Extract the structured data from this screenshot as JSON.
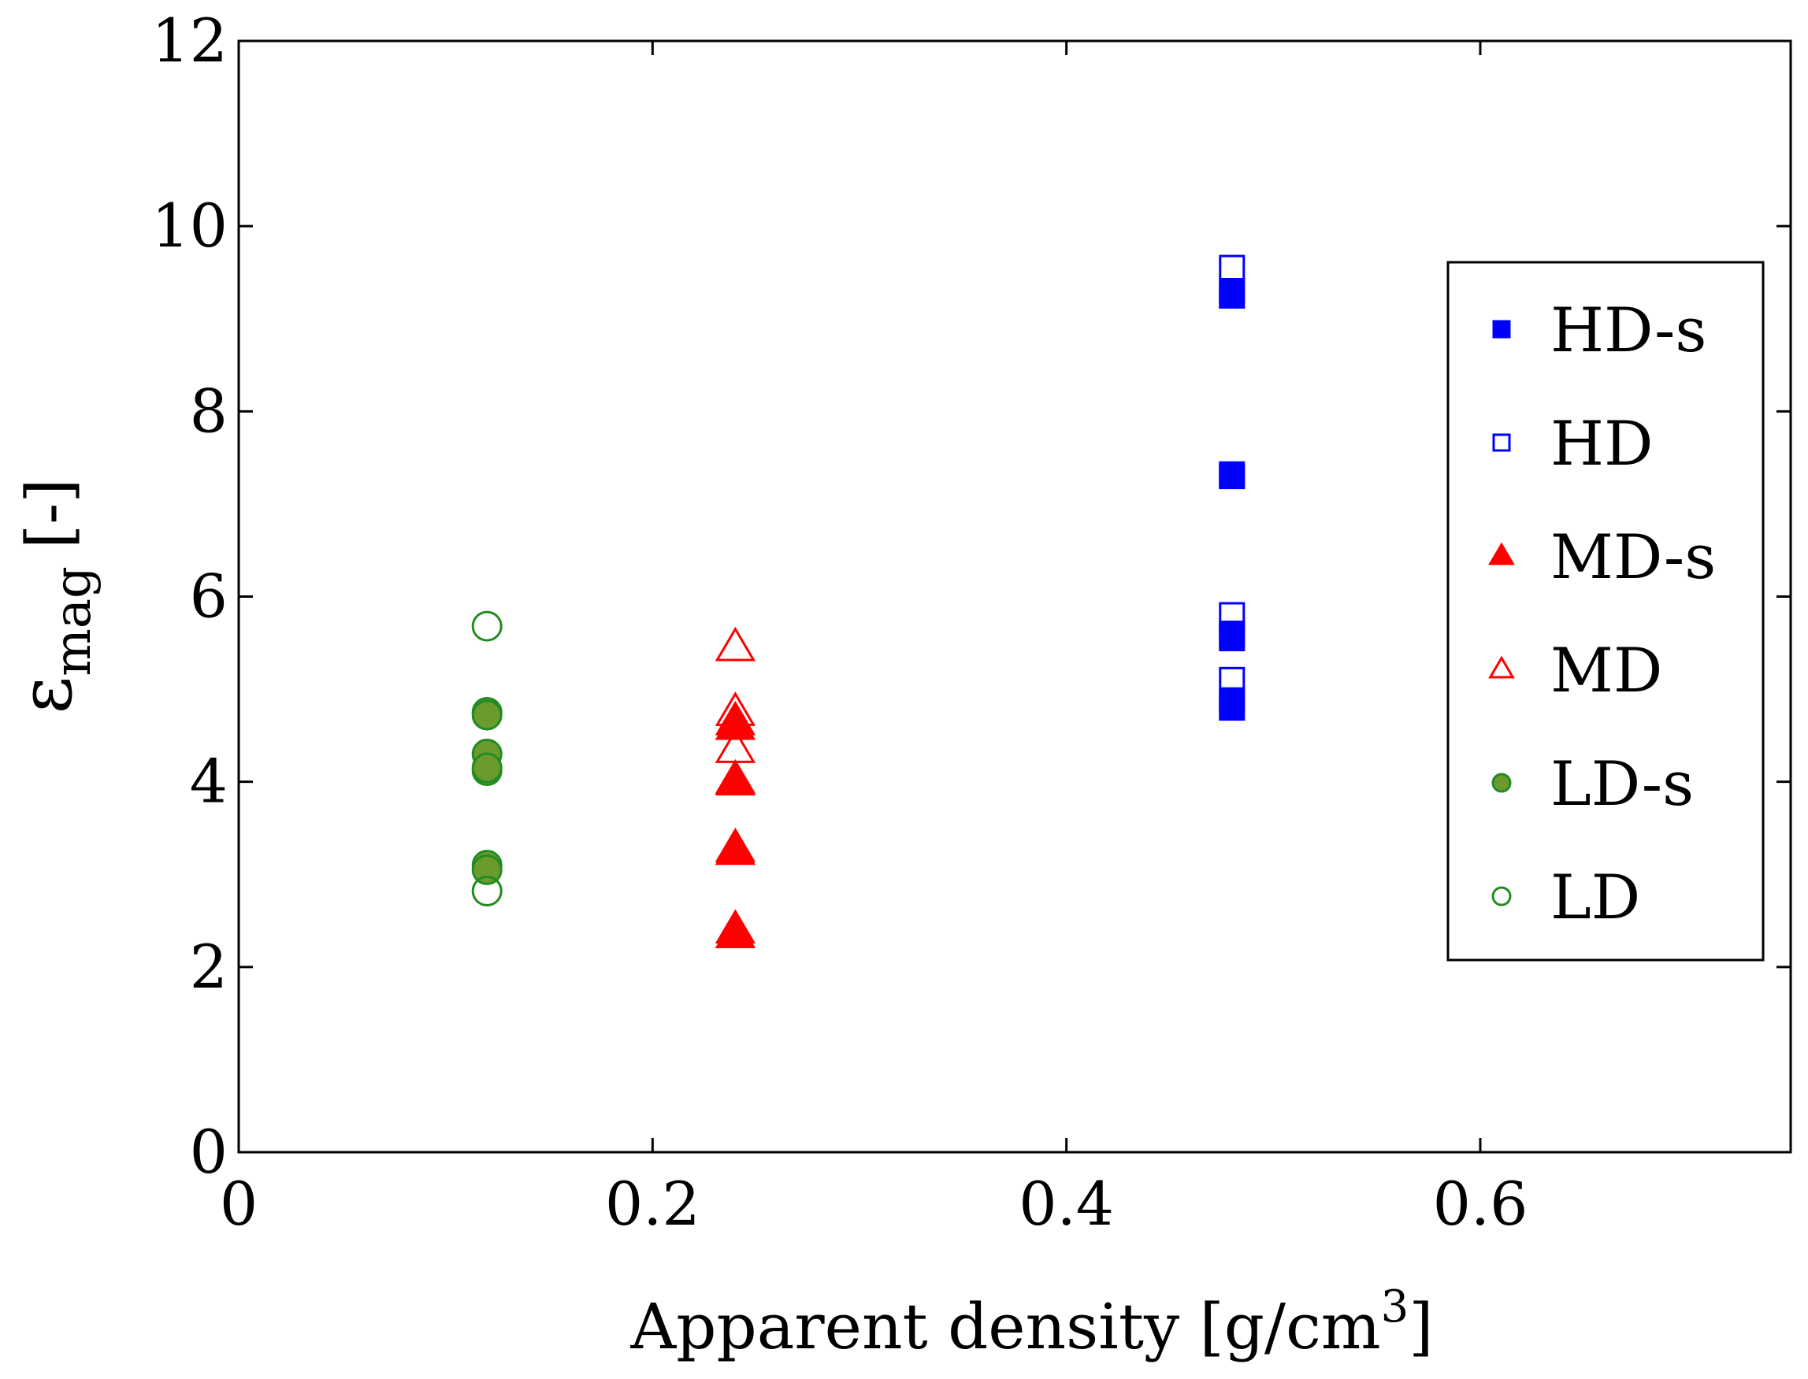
{
  "chart_data": {
    "type": "scatter",
    "title": "",
    "xlabel": "Apparent density [g/cm",
    "xlabel_sup": "3",
    "xlabel_end": "]",
    "ylabel_symbol": "ε",
    "ylabel_sub": "mag",
    "ylabel_unit": "[-]",
    "xlim": [
      0,
      0.75
    ],
    "ylim": [
      0,
      12
    ],
    "xticks": [
      0,
      0.2,
      0.4,
      0.6
    ],
    "xtick_labels": [
      "0",
      "0.2",
      "0.4",
      "0.6"
    ],
    "yticks": [
      0,
      2,
      4,
      6,
      8,
      10,
      12
    ],
    "ytick_labels": [
      "0",
      "2",
      "4",
      "6",
      "8",
      "10",
      "12"
    ],
    "legend_position": "right",
    "series": [
      {
        "name": "HD-s",
        "marker": "square",
        "filled": true,
        "color": "#0000ff",
        "x": 0.48,
        "values": [
          9.25,
          9.3,
          7.3,
          7.32,
          5.55,
          5.6,
          4.8,
          4.88
        ]
      },
      {
        "name": "HD",
        "marker": "square",
        "filled": false,
        "color": "#0000ff",
        "x": 0.48,
        "values": [
          9.55,
          5.8,
          5.1
        ]
      },
      {
        "name": "MD-s",
        "marker": "triangle",
        "filled": true,
        "color": "#ff0000",
        "x": 0.24,
        "values": [
          4.6,
          4.65,
          4.0,
          4.02,
          3.25,
          3.28,
          2.35,
          2.4
        ]
      },
      {
        "name": "MD",
        "marker": "triangle",
        "filled": false,
        "color": "#ff0000",
        "x": 0.24,
        "values": [
          5.45,
          4.75,
          4.35
        ]
      },
      {
        "name": "LD-s",
        "marker": "circle",
        "filled": true,
        "color": "#228b22",
        "fill": "#6b9a2e",
        "x": 0.12,
        "values": [
          4.75,
          4.72,
          4.3,
          4.12,
          4.15,
          3.1,
          3.05
        ]
      },
      {
        "name": "LD",
        "marker": "circle",
        "filled": false,
        "color": "#228b22",
        "x": 0.12,
        "values": [
          5.68,
          2.82
        ]
      }
    ]
  }
}
